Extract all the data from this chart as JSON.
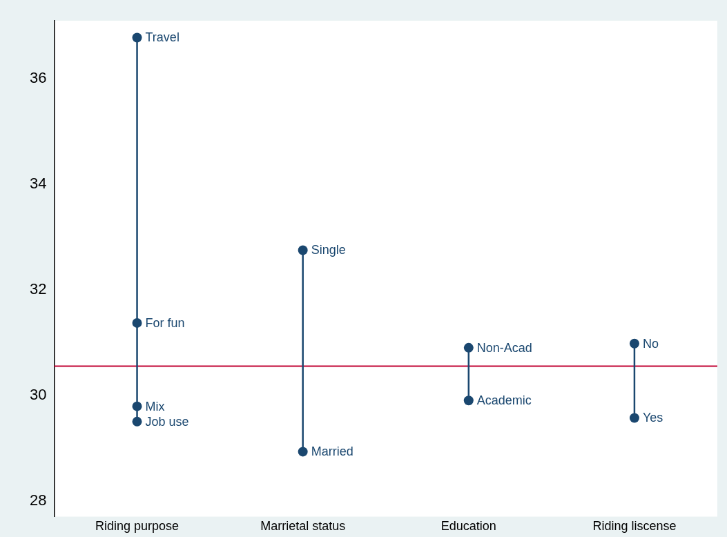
{
  "chart_data": {
    "type": "line",
    "categories": [
      "Riding purpose",
      "Marrietal status",
      "Education",
      "Riding liscense"
    ],
    "series": [
      {
        "color": "#1a476f",
        "x": [
          "Riding purpose",
          "Riding purpose",
          "Riding purpose",
          "Riding purpose"
        ],
        "values": [
          36.78,
          31.37,
          29.79,
          29.5
        ]
      },
      {
        "color": "#1a476f",
        "x": [
          "Marrietal status",
          "Marrietal status"
        ],
        "values": [
          32.75,
          28.93
        ]
      },
      {
        "color": "#1a476f",
        "x": [
          "Education",
          "Education"
        ],
        "values": [
          30.9,
          29.9
        ]
      },
      {
        "color": "#1a476f",
        "x": [
          "Riding liscense",
          "Riding liscense"
        ],
        "values": [
          30.98,
          29.57
        ]
      }
    ],
    "ylim": [
      27.7,
      37.1
    ],
    "yticks": [
      28,
      30,
      32,
      34,
      36
    ],
    "ref_lines": [
      {
        "axis": "y",
        "value": 30.55,
        "color": "#c10534"
      }
    ],
    "annotations": [
      {
        "text": "Travel",
        "x": "Riding purpose",
        "y": 36.78
      },
      {
        "text": "For fun",
        "x": "Riding purpose",
        "y": 31.37
      },
      {
        "text": "Mix",
        "x": "Riding purpose",
        "y": 29.79
      },
      {
        "text": "Job use",
        "x": "Riding purpose",
        "y": 29.5
      },
      {
        "text": "Single",
        "x": "Marrietal status",
        "y": 32.75
      },
      {
        "text": "Married",
        "x": "Marrietal status",
        "y": 28.93
      },
      {
        "text": "Non-Acad",
        "x": "Education",
        "y": 30.9
      },
      {
        "text": "Academic",
        "x": "Education",
        "y": 29.9
      },
      {
        "text": "No",
        "x": "Riding liscense",
        "y": 30.98
      },
      {
        "text": "Yes",
        "x": "Riding liscense",
        "y": 29.57
      }
    ],
    "grid": false,
    "legend": false,
    "marker": "circle",
    "line_style": "solid"
  }
}
